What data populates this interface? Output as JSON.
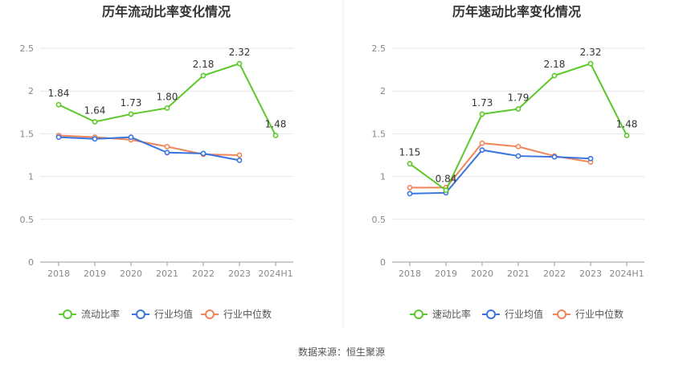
{
  "source": "数据来源：恒生聚源",
  "colors": {
    "main": "#5cc82a",
    "avg": "#3b74dc",
    "median": "#f0855a",
    "grid": "#e6e6e6",
    "axis": "#999999"
  },
  "chart_data": [
    {
      "type": "line",
      "title": "历年流动比率变化情况",
      "categories": [
        "2018",
        "2019",
        "2020",
        "2021",
        "2022",
        "2023",
        "2024H1"
      ],
      "ylim": [
        0,
        2.5
      ],
      "yticks": [
        "0",
        "0.5",
        "1",
        "1.5",
        "2",
        "2.5"
      ],
      "grid": true,
      "legend_position": "bottom",
      "series": [
        {
          "name": "流动比率",
          "values": [
            1.84,
            1.64,
            1.73,
            1.8,
            2.18,
            2.32,
            1.48
          ],
          "labels": [
            "1.84",
            "1.64",
            "1.73",
            "1.80",
            "2.18",
            "2.32",
            "1.48"
          ]
        },
        {
          "name": "行业均值",
          "values": [
            1.46,
            1.44,
            1.46,
            1.28,
            1.27,
            1.19,
            null
          ]
        },
        {
          "name": "行业中位数",
          "values": [
            1.48,
            1.46,
            1.43,
            1.35,
            1.26,
            1.25,
            null
          ]
        }
      ]
    },
    {
      "type": "line",
      "title": "历年速动比率变化情况",
      "categories": [
        "2018",
        "2019",
        "2020",
        "2021",
        "2022",
        "2023",
        "2024H1"
      ],
      "ylim": [
        0,
        2.5
      ],
      "yticks": [
        "0",
        "0.5",
        "1",
        "1.5",
        "2",
        "2.5"
      ],
      "grid": true,
      "legend_position": "bottom",
      "series": [
        {
          "name": "速动比率",
          "values": [
            1.15,
            0.84,
            1.73,
            1.79,
            2.18,
            2.32,
            1.48
          ],
          "labels": [
            "1.15",
            "0.84",
            "1.73",
            "1.79",
            "2.18",
            "2.32",
            "1.48"
          ]
        },
        {
          "name": "行业均值",
          "values": [
            0.8,
            0.81,
            1.31,
            1.24,
            1.23,
            1.21,
            null
          ]
        },
        {
          "name": "行业中位数",
          "values": [
            0.87,
            0.87,
            1.39,
            1.35,
            1.24,
            1.17,
            null
          ]
        }
      ]
    }
  ]
}
